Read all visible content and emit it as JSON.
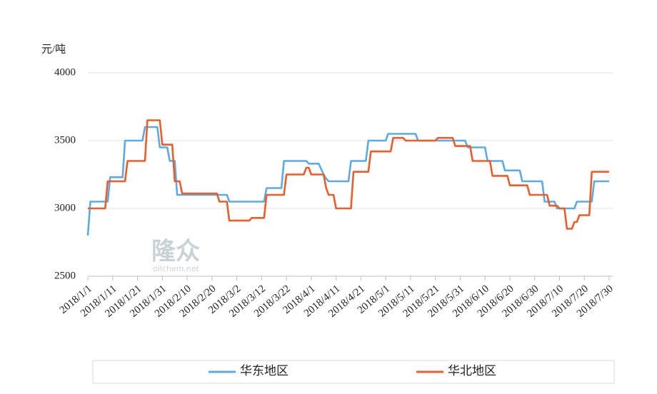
{
  "chart_data": {
    "type": "line",
    "y_axis_label": "元/吨",
    "watermark": [
      "隆众",
      "oilchem.net"
    ],
    "xlim": [
      "2018/1/1",
      "2018/7/30"
    ],
    "xticks": [
      "2018/1/1",
      "2018/1/11",
      "2018/1/21",
      "2018/1/31",
      "2018/2/10",
      "2018/2/20",
      "2018/3/2",
      "2018/3/12",
      "2018/3/22",
      "2018/4/1",
      "2018/4/11",
      "2018/4/21",
      "2018/5/1",
      "2018/5/11",
      "2018/5/21",
      "2018/5/31",
      "2018/6/10",
      "2018/6/20",
      "2018/6/30",
      "2018/7/10",
      "2018/7/20",
      "2018/7/30"
    ],
    "ylim": [
      2500,
      4000
    ],
    "yticks": [
      2500,
      3000,
      3500,
      4000
    ],
    "grid": true,
    "legend": "bottom",
    "series": [
      {
        "name": "华东地区",
        "color": "#5aabe6",
        "x": [
          "2018/1/1",
          "2018/1/2",
          "2018/1/9",
          "2018/1/10",
          "2018/1/15",
          "2018/1/16",
          "2018/1/23",
          "2018/1/24",
          "2018/1/29",
          "2018/1/30",
          "2018/2/2",
          "2018/2/3",
          "2018/2/5",
          "2018/2/6",
          "2018/2/26",
          "2018/2/27",
          "2018/3/13",
          "2018/3/14",
          "2018/3/20",
          "2018/3/21",
          "2018/3/30",
          "2018/3/31",
          "2018/4/4",
          "2018/4/6",
          "2018/4/7",
          "2018/4/8",
          "2018/4/16",
          "2018/4/17",
          "2018/4/23",
          "2018/4/24",
          "2018/5/1",
          "2018/5/2",
          "2018/5/13",
          "2018/5/14",
          "2018/6/2",
          "2018/6/3",
          "2018/6/10",
          "2018/6/11",
          "2018/6/17",
          "2018/6/18",
          "2018/6/24",
          "2018/6/25",
          "2018/7/3",
          "2018/7/4",
          "2018/7/8",
          "2018/7/9",
          "2018/7/16",
          "2018/7/17",
          "2018/7/23",
          "2018/7/24",
          "2018/7/30"
        ],
        "values": [
          2800,
          3050,
          3050,
          3230,
          3230,
          3500,
          3500,
          3600,
          3600,
          3450,
          3450,
          3350,
          3350,
          3100,
          3100,
          3050,
          3050,
          3150,
          3150,
          3350,
          3350,
          3330,
          3330,
          3250,
          3220,
          3200,
          3200,
          3350,
          3350,
          3500,
          3500,
          3550,
          3550,
          3500,
          3500,
          3450,
          3450,
          3350,
          3350,
          3280,
          3280,
          3200,
          3200,
          3050,
          3050,
          3000,
          3000,
          3050,
          3050,
          3200,
          3200
        ]
      },
      {
        "name": "华北地区",
        "color": "#ec5d2a",
        "x": [
          "2018/1/1",
          "2018/1/8",
          "2018/1/9",
          "2018/1/16",
          "2018/1/17",
          "2018/1/24",
          "2018/1/25",
          "2018/1/30",
          "2018/1/31",
          "2018/2/4",
          "2018/2/5",
          "2018/2/7",
          "2018/2/8",
          "2018/2/22",
          "2018/2/23",
          "2018/2/26",
          "2018/2/27",
          "2018/3/7",
          "2018/3/8",
          "2018/3/13",
          "2018/3/14",
          "2018/3/21",
          "2018/3/22",
          "2018/3/29",
          "2018/3/30",
          "2018/3/31",
          "2018/4/1",
          "2018/4/6",
          "2018/4/7",
          "2018/4/8",
          "2018/4/10",
          "2018/4/11",
          "2018/4/17",
          "2018/4/18",
          "2018/4/24",
          "2018/4/25",
          "2018/5/3",
          "2018/5/4",
          "2018/5/8",
          "2018/5/9",
          "2018/5/21",
          "2018/5/22",
          "2018/5/28",
          "2018/5/29",
          "2018/6/4",
          "2018/6/5",
          "2018/6/12",
          "2018/6/13",
          "2018/6/19",
          "2018/6/20",
          "2018/6/27",
          "2018/6/28",
          "2018/7/5",
          "2018/7/6",
          "2018/7/9",
          "2018/7/10",
          "2018/7/12",
          "2018/7/13",
          "2018/7/15",
          "2018/7/16",
          "2018/7/17",
          "2018/7/18",
          "2018/7/22",
          "2018/7/23",
          "2018/7/30"
        ],
        "values": [
          3000,
          3000,
          3200,
          3200,
          3350,
          3350,
          3650,
          3650,
          3470,
          3470,
          3200,
          3200,
          3110,
          3110,
          3050,
          3050,
          2910,
          2910,
          2930,
          2930,
          3100,
          3100,
          3250,
          3250,
          3300,
          3300,
          3250,
          3250,
          3150,
          3100,
          3100,
          3000,
          3000,
          3270,
          3270,
          3420,
          3420,
          3520,
          3520,
          3500,
          3500,
          3520,
          3520,
          3460,
          3460,
          3350,
          3350,
          3240,
          3240,
          3170,
          3170,
          3100,
          3100,
          3020,
          3020,
          3000,
          3000,
          2850,
          2850,
          2900,
          2900,
          2950,
          2950,
          3270,
          3270
        ]
      }
    ]
  }
}
